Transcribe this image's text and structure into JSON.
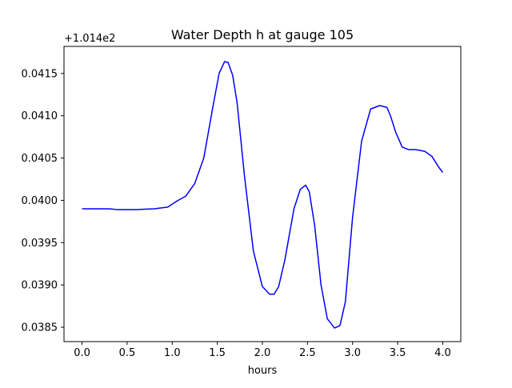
{
  "chart_data": {
    "type": "line",
    "title": "Water Depth h at gauge 105",
    "xlabel": "hours",
    "ylabel": "",
    "y_offset_label": "+1.014e2",
    "xlim": [
      -0.2,
      4.2
    ],
    "ylim": [
      0.03833,
      0.04182
    ],
    "x_ticks": [
      0.0,
      0.5,
      1.0,
      1.5,
      2.0,
      2.5,
      3.0,
      3.5,
      4.0
    ],
    "x_tick_labels": [
      "0.0",
      "0.5",
      "1.0",
      "1.5",
      "2.0",
      "2.5",
      "3.0",
      "3.5",
      "4.0"
    ],
    "y_ticks": [
      0.0385,
      0.039,
      0.0395,
      0.04,
      0.0405,
      0.041,
      0.0415
    ],
    "y_tick_labels": [
      "0.0385",
      "0.0390",
      "0.0395",
      "0.0400",
      "0.0405",
      "0.0410",
      "0.0415"
    ],
    "grid": false,
    "line_color": "#0000ff",
    "series": [
      {
        "x": [
          0.0,
          0.3,
          0.4,
          0.6,
          0.8,
          0.95,
          1.05,
          1.15,
          1.25,
          1.35,
          1.45,
          1.52,
          1.58,
          1.62,
          1.67,
          1.72,
          1.8,
          1.9,
          2.0,
          2.08,
          2.13,
          2.18,
          2.25,
          2.35,
          2.42,
          2.48,
          2.52,
          2.58,
          2.65,
          2.72,
          2.8,
          2.86,
          2.92,
          3.0,
          3.1,
          3.2,
          3.3,
          3.38,
          3.42,
          3.48,
          3.55,
          3.62,
          3.7,
          3.8,
          3.88,
          3.95,
          4.0
        ],
        "y": [
          0.0399,
          0.0399,
          0.03989,
          0.03989,
          0.0399,
          0.03992,
          0.03999,
          0.04005,
          0.0402,
          0.0405,
          0.0411,
          0.0415,
          0.04164,
          0.04163,
          0.04148,
          0.04115,
          0.0403,
          0.0394,
          0.03898,
          0.03889,
          0.03889,
          0.03898,
          0.0393,
          0.0399,
          0.04013,
          0.04018,
          0.0401,
          0.0397,
          0.039,
          0.0386,
          0.03849,
          0.03852,
          0.0388,
          0.0398,
          0.0407,
          0.04108,
          0.04112,
          0.0411,
          0.041,
          0.0408,
          0.04063,
          0.0406,
          0.0406,
          0.04058,
          0.04052,
          0.0404,
          0.04033
        ]
      }
    ]
  }
}
